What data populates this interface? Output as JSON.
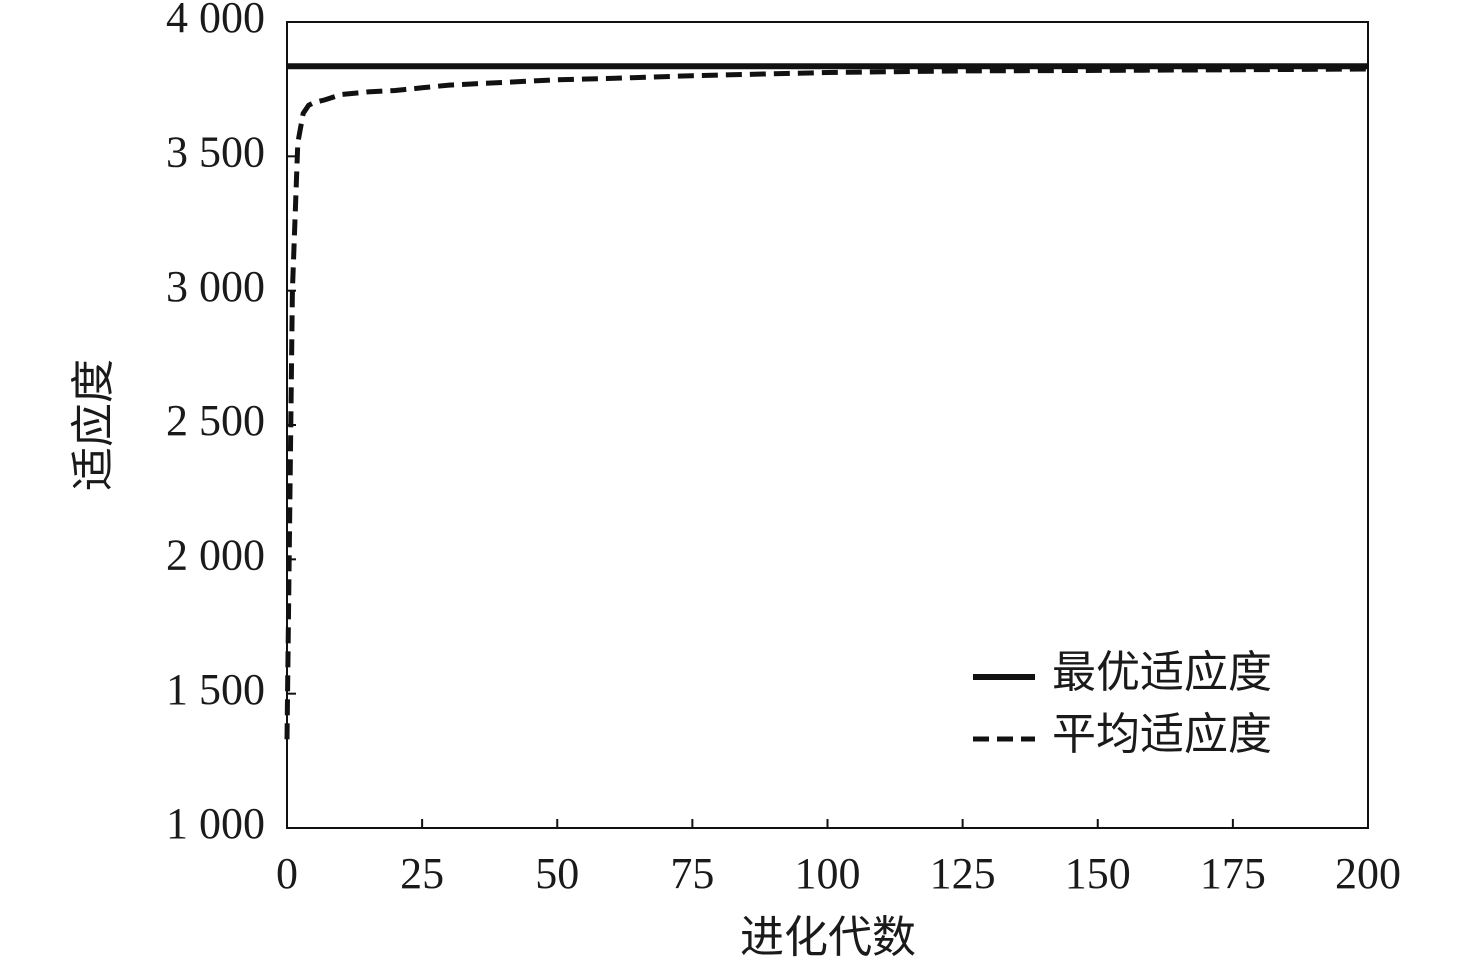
{
  "chart_data": {
    "type": "line",
    "x_label": "进化代数",
    "y_label": "适应度",
    "x": [
      0,
      1,
      2,
      3,
      4,
      5,
      7,
      10,
      15,
      20,
      25,
      30,
      40,
      50,
      60,
      75,
      100,
      125,
      150,
      175,
      200
    ],
    "series": [
      {
        "name": "最优适应度",
        "color": "#111111",
        "style": "solid",
        "values": [
          3835,
          3835,
          3835,
          3835,
          3835,
          3835,
          3835,
          3835,
          3835,
          3835,
          3835,
          3835,
          3835,
          3835,
          3835,
          3835,
          3835,
          3835,
          3835,
          3835,
          3835
        ]
      },
      {
        "name": "平均适应度",
        "color": "#111111",
        "style": "dashed",
        "values": [
          1330,
          3000,
          3550,
          3660,
          3690,
          3700,
          3710,
          3730,
          3740,
          3745,
          3755,
          3765,
          3775,
          3785,
          3790,
          3800,
          3812,
          3818,
          3820,
          3822,
          3825
        ]
      }
    ],
    "xlim": [
      0,
      200
    ],
    "ylim": [
      1000,
      4000
    ],
    "xticks": [
      0,
      25,
      50,
      75,
      100,
      125,
      150,
      175,
      200
    ],
    "yticks": [
      {
        "value": 1000,
        "label": "1 000"
      },
      {
        "value": 1500,
        "label": "1 500"
      },
      {
        "value": 2000,
        "label": "2 000"
      },
      {
        "value": 2500,
        "label": "2 500"
      },
      {
        "value": 3000,
        "label": "3 000"
      },
      {
        "value": 3500,
        "label": "3 500"
      },
      {
        "value": 4000,
        "label": "4 000"
      }
    ],
    "legend": "lower right",
    "grid": false
  }
}
